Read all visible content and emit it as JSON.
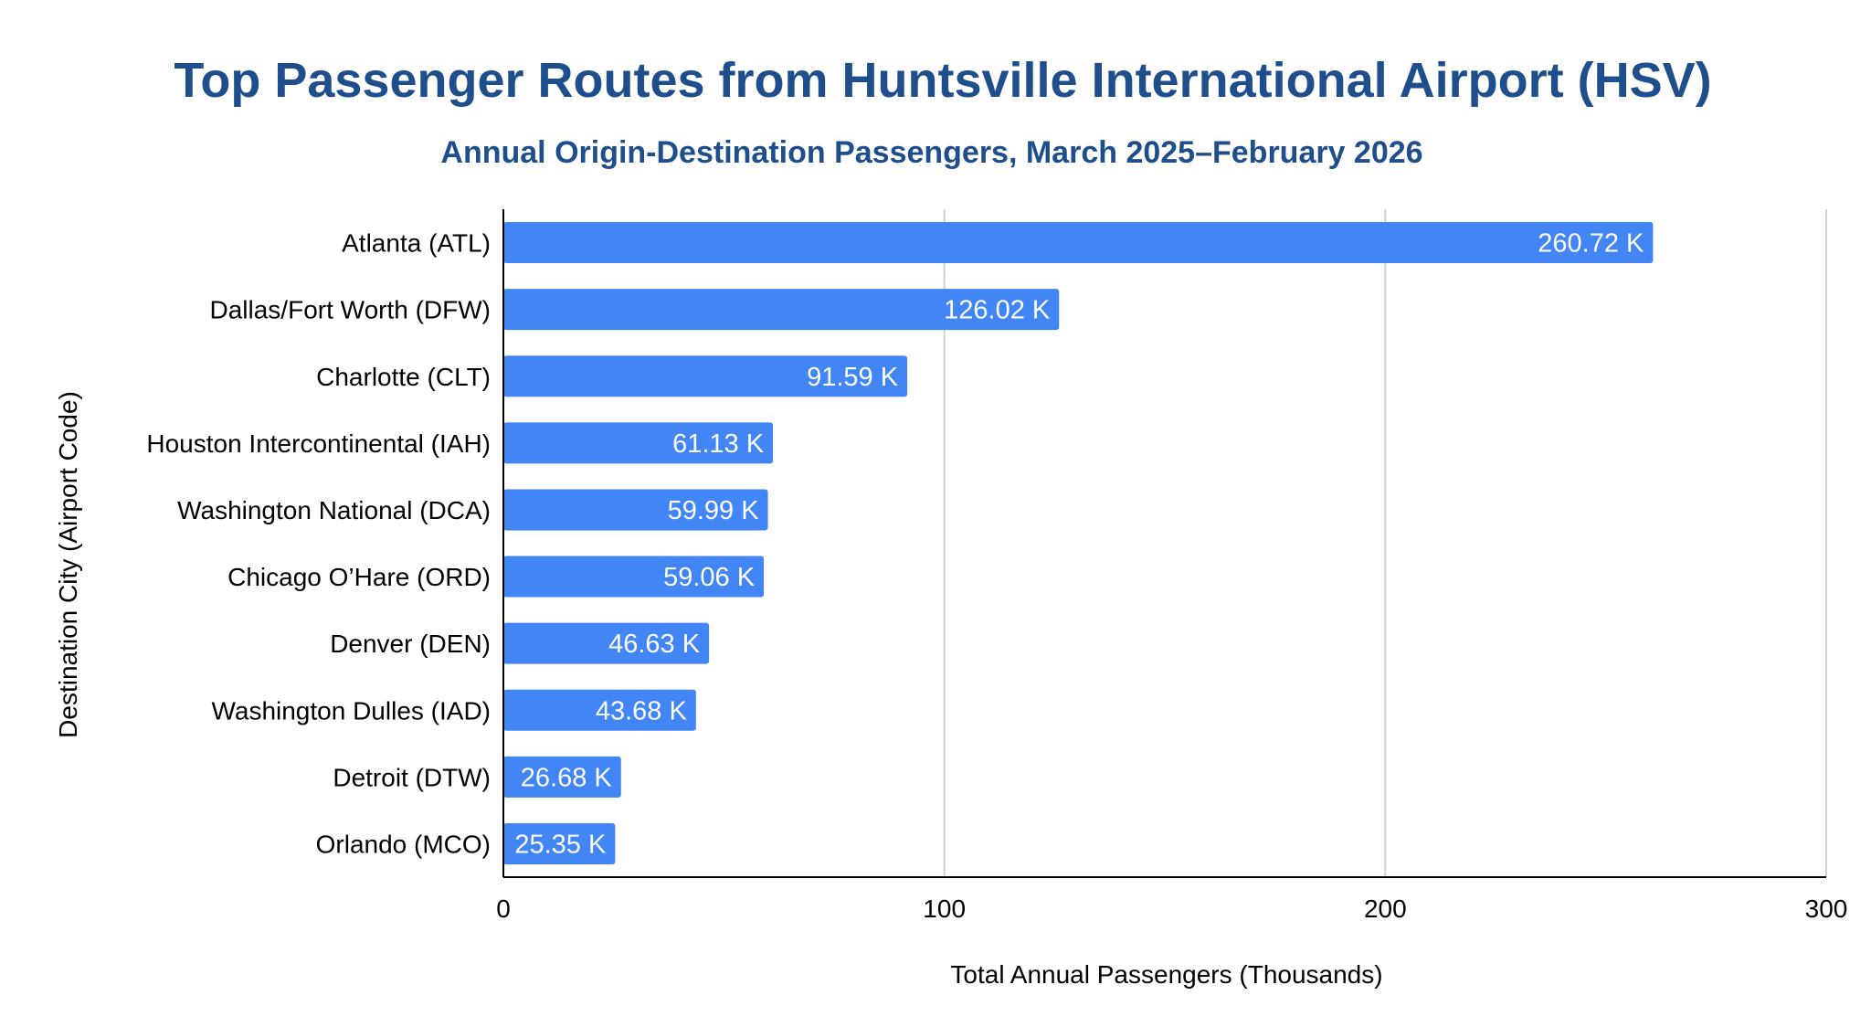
{
  "colors": {
    "title": "#1f4e8c",
    "bar": "#4285f4",
    "grid": "#d0d0d0",
    "axis": "#000000",
    "data_label": "#ffffff"
  },
  "chart_data": {
    "type": "bar",
    "orientation": "horizontal",
    "title": "Top Passenger Routes from Huntsville International Airport (HSV)",
    "subtitle": "Annual Origin-Destination Passengers, March 2025–February 2026",
    "xlabel": "Total Annual Passengers (Thousands)",
    "ylabel": "Destination City (Airport Code)",
    "xlim": [
      0,
      300
    ],
    "xticks": [
      0,
      100,
      200,
      300
    ],
    "grid": true,
    "legend": "none",
    "categories": [
      "Atlanta (ATL)",
      "Dallas/Fort Worth (DFW)",
      "Charlotte (CLT)",
      "Houston Intercontinental (IAH)",
      "Washington National (DCA)",
      "Chicago O’Hare (ORD)",
      "Denver (DEN)",
      "Washington Dulles (IAD)",
      "Detroit (DTW)",
      "Orlando (MCO)"
    ],
    "values": [
      260.72,
      126.02,
      91.59,
      61.13,
      59.99,
      59.06,
      46.63,
      43.68,
      26.68,
      25.35
    ],
    "data_labels": [
      "260.72 K",
      "126.02 K",
      "91.59 K",
      "61.13 K",
      "59.99 K",
      "59.06 K",
      "46.63 K",
      "43.68 K",
      "26.68 K",
      "25.35 K"
    ]
  }
}
